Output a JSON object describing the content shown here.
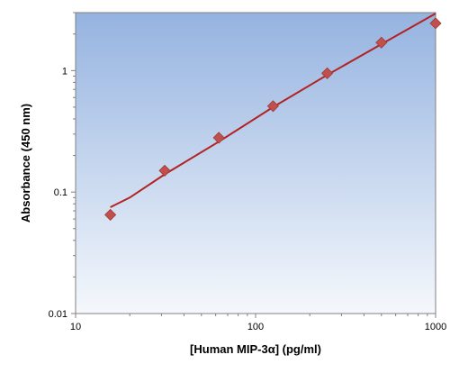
{
  "chart_data": {
    "type": "scatter",
    "title": "",
    "xlabel": "[Human MIP-3α] (pg/ml)",
    "ylabel": "Absorbance (450 nm)",
    "x_scale": "log",
    "y_scale": "log",
    "xlim": [
      10,
      1000
    ],
    "ylim": [
      0.01,
      3
    ],
    "x_ticks": [
      10,
      100,
      1000
    ],
    "x_tick_labels": [
      "10",
      "100",
      "1000"
    ],
    "y_ticks": [
      0.01,
      0.1,
      1
    ],
    "y_tick_labels": [
      "0.01",
      "0.1",
      "1"
    ],
    "grid": false,
    "points": {
      "x": [
        15.6,
        31.25,
        62.5,
        125,
        250,
        500,
        1000
      ],
      "y": [
        0.065,
        0.15,
        0.28,
        0.51,
        0.95,
        1.7,
        2.45
      ]
    },
    "fit_curve": {
      "x": [
        15.6,
        20,
        31.25,
        62.5,
        125,
        250,
        500,
        1000
      ],
      "y": [
        0.075,
        0.09,
        0.14,
        0.26,
        0.5,
        0.92,
        1.65,
        2.95
      ]
    },
    "colors": {
      "marker": "#c0504d",
      "line": "#b22222",
      "plot_bg_top": "#95b3e0",
      "plot_bg_bottom": "#f5f8fc"
    }
  }
}
